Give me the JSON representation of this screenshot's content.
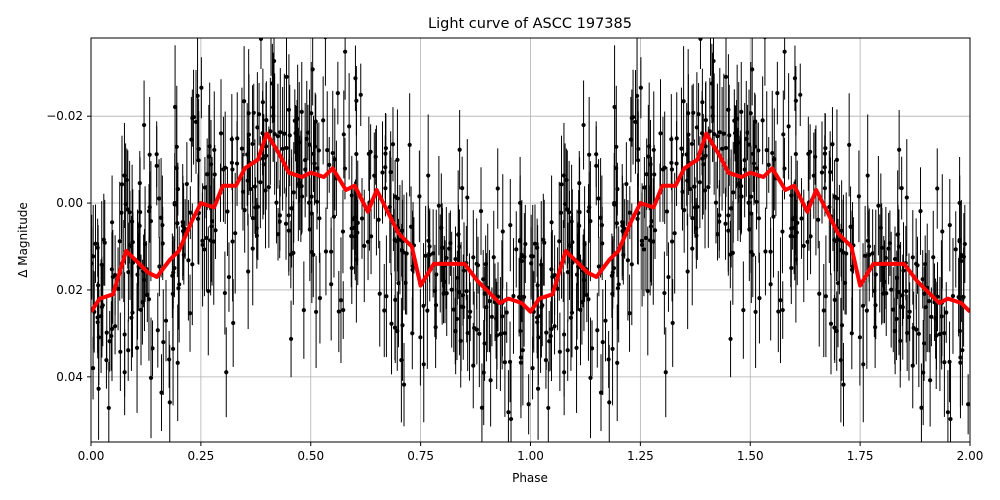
{
  "chart_data": {
    "type": "scatter",
    "title": "Light curve of ASCC 197385",
    "xlabel": "Phase",
    "ylabel": "Δ Magnitude",
    "xlim": [
      0.0,
      2.0
    ],
    "ylim": [
      -0.038,
      0.055
    ],
    "y_inverted": true,
    "grid": true,
    "x_ticks": [
      0.0,
      0.25,
      0.5,
      0.75,
      1.0,
      1.25,
      1.5,
      1.75,
      2.0
    ],
    "x_tick_labels": [
      "0.00",
      "0.25",
      "0.50",
      "0.75",
      "1.00",
      "1.25",
      "1.50",
      "1.75",
      "2.00"
    ],
    "y_ticks": [
      -0.02,
      0.0,
      0.02,
      0.04
    ],
    "y_tick_labels": [
      "−0.02",
      "0.00",
      "0.02",
      "0.04"
    ],
    "series": [
      {
        "kind": "observations",
        "color": "#000000",
        "marker": "point-with-errorbar",
        "model_phase": [
          0.0,
          0.02,
          0.05,
          0.08,
          0.1,
          0.13,
          0.15,
          0.18,
          0.2,
          0.23,
          0.25,
          0.28,
          0.3,
          0.33,
          0.35,
          0.38,
          0.4,
          0.43,
          0.45,
          0.48,
          0.5,
          0.53,
          0.55,
          0.58,
          0.6,
          0.63,
          0.65,
          0.68,
          0.7,
          0.73,
          0.75,
          0.78,
          0.8,
          0.83,
          0.85,
          0.88,
          0.9,
          0.93,
          0.95,
          0.98,
          1.0
        ],
        "scatter_sigma": 0.013,
        "errorbar_half_length": 0.01,
        "points_per_cycle": 450
      },
      {
        "kind": "binned-model",
        "color": "#ff0000",
        "phase": [
          0.0,
          0.02,
          0.05,
          0.08,
          0.1,
          0.13,
          0.15,
          0.18,
          0.2,
          0.23,
          0.25,
          0.28,
          0.3,
          0.33,
          0.35,
          0.38,
          0.4,
          0.43,
          0.45,
          0.48,
          0.5,
          0.53,
          0.55,
          0.58,
          0.6,
          0.63,
          0.65,
          0.68,
          0.7,
          0.73,
          0.75,
          0.78,
          0.8,
          0.83,
          0.85,
          0.88,
          0.9,
          0.93,
          0.95,
          0.98,
          1.0
        ],
        "magnitude": [
          0.025,
          0.022,
          0.021,
          0.011,
          0.013,
          0.016,
          0.017,
          0.013,
          0.011,
          0.004,
          0.0,
          0.001,
          -0.004,
          -0.004,
          -0.008,
          -0.01,
          -0.016,
          -0.011,
          -0.007,
          -0.006,
          -0.007,
          -0.006,
          -0.008,
          -0.003,
          -0.004,
          0.002,
          -0.003,
          0.003,
          0.007,
          0.01,
          0.019,
          0.014,
          0.014,
          0.014,
          0.014,
          0.018,
          0.02,
          0.023,
          0.022,
          0.023,
          0.025
        ]
      }
    ]
  }
}
